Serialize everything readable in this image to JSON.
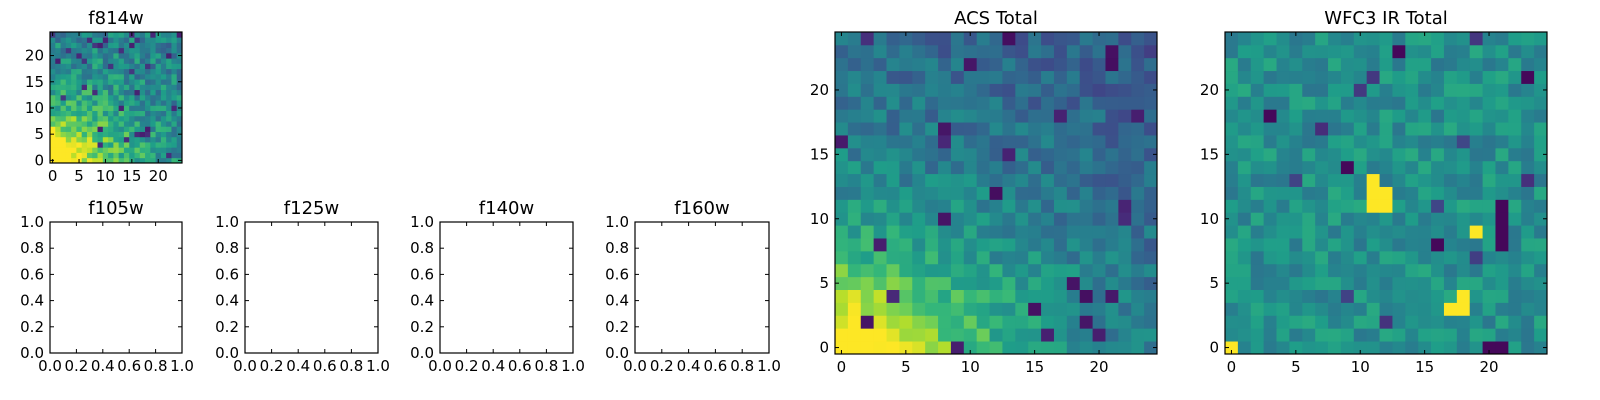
{
  "chart_data": [
    {
      "type": "heatmap",
      "title": "f814w",
      "xticks": [
        "0",
        "5",
        "10",
        "15",
        "20"
      ],
      "yticks": [
        "0",
        "5",
        "10",
        "15",
        "20"
      ],
      "xlim": [
        -0.5,
        24.5
      ],
      "ylim": [
        -0.5,
        24.5
      ],
      "grid": false,
      "colormap": "viridis",
      "values_description": "25x25 image; brightest (yellow) values concentrated near the origin (bottom-left), decaying to teal and scattered dark purple pixels elsewhere",
      "peak_region": {
        "x": [
          0,
          6
        ],
        "y": [
          0,
          4
        ]
      }
    },
    {
      "type": "heatmap",
      "title": "f105w",
      "xticks": [
        "0.0",
        "0.2",
        "0.4",
        "0.6",
        "0.8",
        "1.0"
      ],
      "yticks": [
        "0.0",
        "0.2",
        "0.4",
        "0.6",
        "0.8",
        "1.0"
      ],
      "xlim": [
        0,
        1
      ],
      "ylim": [
        0,
        1
      ],
      "empty": true
    },
    {
      "type": "heatmap",
      "title": "f125w",
      "xticks": [
        "0.0",
        "0.2",
        "0.4",
        "0.6",
        "0.8",
        "1.0"
      ],
      "yticks": [
        "0.0",
        "0.2",
        "0.4",
        "0.6",
        "0.8",
        "1.0"
      ],
      "xlim": [
        0,
        1
      ],
      "ylim": [
        0,
        1
      ],
      "empty": true
    },
    {
      "type": "heatmap",
      "title": "f140w",
      "xticks": [
        "0.0",
        "0.2",
        "0.4",
        "0.6",
        "0.8",
        "1.0"
      ],
      "yticks": [
        "0.0",
        "0.2",
        "0.4",
        "0.6",
        "0.8",
        "1.0"
      ],
      "xlim": [
        0,
        1
      ],
      "ylim": [
        0,
        1
      ],
      "empty": true
    },
    {
      "type": "heatmap",
      "title": "f160w",
      "xticks": [
        "0.0",
        "0.2",
        "0.4",
        "0.6",
        "0.8",
        "1.0"
      ],
      "yticks": [
        "0.0",
        "0.2",
        "0.4",
        "0.6",
        "0.8",
        "1.0"
      ],
      "xlim": [
        0,
        1
      ],
      "ylim": [
        0,
        1
      ],
      "empty": true
    },
    {
      "type": "heatmap",
      "title": "ACS Total",
      "xticks": [
        "0",
        "5",
        "10",
        "15",
        "20"
      ],
      "yticks": [
        "0",
        "5",
        "10",
        "15",
        "20"
      ],
      "xlim": [
        -0.5,
        24.5
      ],
      "ylim": [
        -0.5,
        24.5
      ],
      "grid": false,
      "colormap": "viridis",
      "values_description": "25x25 image; yellow-green high values in bottom-left (x 0-10, y 0-6), teal background, dark purple pixels scattered toward the upper right",
      "peak_region": {
        "x": [
          0,
          10
        ],
        "y": [
          0,
          5
        ]
      }
    },
    {
      "type": "heatmap",
      "title": "WFC3 IR Total",
      "xticks": [
        "0",
        "5",
        "10",
        "15",
        "20"
      ],
      "yticks": [
        "0",
        "5",
        "10",
        "15",
        "20"
      ],
      "xlim": [
        -0.5,
        24.5
      ],
      "ylim": [
        -0.5,
        24.5
      ],
      "grid": false,
      "colormap": "viridis",
      "values_description": "25x25 image; mostly teal-green noise with bright yellow blobs near (11,12), (17,3) and (19,9) and a dark purple column near x=21",
      "hot_spots": [
        [
          11,
          11
        ],
        [
          11,
          12
        ],
        [
          12,
          12
        ],
        [
          12,
          11
        ],
        [
          11,
          13
        ],
        [
          17,
          3
        ],
        [
          18,
          3
        ],
        [
          18,
          4
        ],
        [
          19,
          9
        ],
        [
          0,
          0
        ]
      ],
      "dark_spots": [
        [
          21,
          8
        ],
        [
          21,
          9
        ],
        [
          21,
          10
        ],
        [
          21,
          11
        ],
        [
          20,
          0
        ],
        [
          21,
          0
        ],
        [
          9,
          14
        ],
        [
          16,
          8
        ],
        [
          3,
          18
        ],
        [
          13,
          23
        ],
        [
          23,
          21
        ]
      ]
    }
  ],
  "colors": {
    "viridis_low": "#440154",
    "viridis_mid": "#21918c",
    "viridis_high": "#fde725",
    "axes": "#000000",
    "background": "#ffffff"
  }
}
